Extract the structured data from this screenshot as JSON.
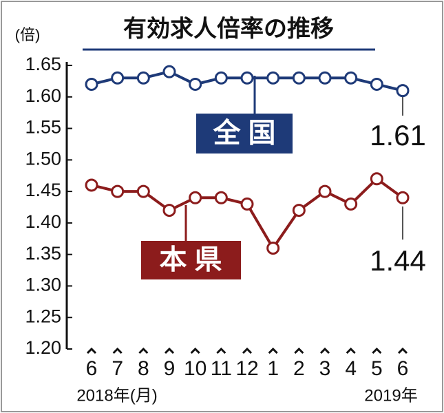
{
  "chart_data": {
    "type": "line",
    "title": "有効求人倍率の推移",
    "y_label": "(倍)",
    "x_labels": [
      "2018年(月)",
      "2019年"
    ],
    "categories": [
      "6",
      "7",
      "8",
      "9",
      "10",
      "11",
      "12",
      "1",
      "2",
      "3",
      "4",
      "5",
      "6"
    ],
    "series": [
      {
        "name": "全 国",
        "color": "#1e3a78",
        "values": [
          1.62,
          1.63,
          1.63,
          1.64,
          1.62,
          1.63,
          1.63,
          1.63,
          1.63,
          1.63,
          1.63,
          1.62,
          1.61
        ]
      },
      {
        "name": "本 県",
        "color": "#8c1c1c",
        "values": [
          1.46,
          1.45,
          1.45,
          1.42,
          1.44,
          1.44,
          1.43,
          1.36,
          1.42,
          1.45,
          1.43,
          1.47,
          1.44
        ]
      }
    ],
    "ylim": [
      1.2,
      1.65
    ],
    "yticks": [
      {
        "value": 1.2,
        "label": "1.20"
      },
      1.25,
      {
        "value": 1.3,
        "label": "1.30"
      },
      1.35,
      {
        "value": 1.4,
        "label": "1.40"
      },
      1.45,
      {
        "value": 1.5,
        "label": "1.50"
      },
      1.55,
      {
        "value": 1.6,
        "label": "1.60"
      },
      1.65
    ]
  }
}
